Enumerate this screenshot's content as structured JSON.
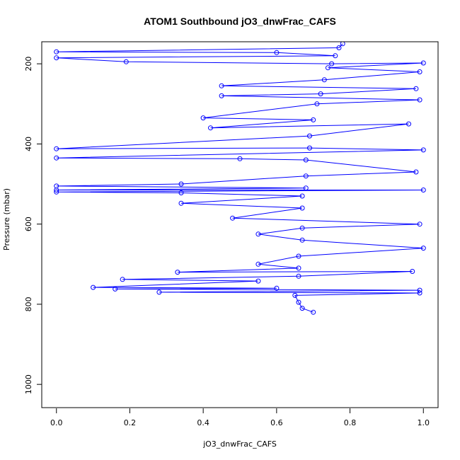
{
  "chart_data": {
    "type": "scatter",
    "title": "ATOM1 Southbound jO3_dnwFrac_CAFS",
    "xlabel": "jO3_dnwFrac_CAFS",
    "ylabel": "Pressure (mbar)",
    "xlim": [
      -0.04,
      1.04
    ],
    "ylim": [
      1058,
      145
    ],
    "y_inverted": true,
    "x_ticks": [
      "0.0",
      "0.2",
      "0.4",
      "0.6",
      "0.8",
      "1.0"
    ],
    "y_ticks": [
      "200",
      "400",
      "600",
      "800",
      "1000"
    ],
    "grid": false,
    "legend": "none",
    "color": "#0000ff",
    "marker": "open-circle",
    "connected": true,
    "series": [
      {
        "points": [
          [
            0.78,
            150
          ],
          [
            0.77,
            160
          ],
          [
            0.0,
            170
          ],
          [
            0.6,
            172
          ],
          [
            0.76,
            180
          ],
          [
            0.0,
            185
          ],
          [
            0.19,
            195
          ],
          [
            0.75,
            200
          ],
          [
            1.0,
            198
          ],
          [
            0.74,
            210
          ],
          [
            0.99,
            220
          ],
          [
            0.73,
            240
          ],
          [
            0.45,
            255
          ],
          [
            0.98,
            262
          ],
          [
            0.72,
            275
          ],
          [
            0.45,
            280
          ],
          [
            0.99,
            290
          ],
          [
            0.71,
            300
          ],
          [
            0.4,
            335
          ],
          [
            0.7,
            340
          ],
          [
            0.42,
            360
          ],
          [
            0.96,
            350
          ],
          [
            0.69,
            380
          ],
          [
            0.0,
            412
          ],
          [
            0.69,
            410
          ],
          [
            1.0,
            415
          ],
          [
            0.0,
            435
          ],
          [
            0.5,
            437
          ],
          [
            0.68,
            440
          ],
          [
            0.98,
            470
          ],
          [
            0.68,
            480
          ],
          [
            0.34,
            500
          ],
          [
            0.0,
            505
          ],
          [
            0.68,
            510
          ],
          [
            0.0,
            515
          ],
          [
            1.0,
            515
          ],
          [
            0.0,
            520
          ],
          [
            0.34,
            522
          ],
          [
            0.67,
            530
          ],
          [
            0.34,
            548
          ],
          [
            0.67,
            560
          ],
          [
            0.48,
            585
          ],
          [
            0.99,
            600
          ],
          [
            0.67,
            610
          ],
          [
            0.55,
            625
          ],
          [
            0.67,
            640
          ],
          [
            1.0,
            660
          ],
          [
            0.66,
            680
          ],
          [
            0.55,
            700
          ],
          [
            0.66,
            710
          ],
          [
            0.33,
            720
          ],
          [
            0.97,
            718
          ],
          [
            0.66,
            730
          ],
          [
            0.18,
            738
          ],
          [
            0.55,
            742
          ],
          [
            0.1,
            758
          ],
          [
            0.6,
            760
          ],
          [
            0.16,
            762
          ],
          [
            0.99,
            765
          ],
          [
            0.28,
            770
          ],
          [
            0.99,
            772
          ],
          [
            0.65,
            778
          ],
          [
            0.66,
            795
          ],
          [
            0.67,
            810
          ],
          [
            0.7,
            820
          ]
        ]
      }
    ]
  }
}
